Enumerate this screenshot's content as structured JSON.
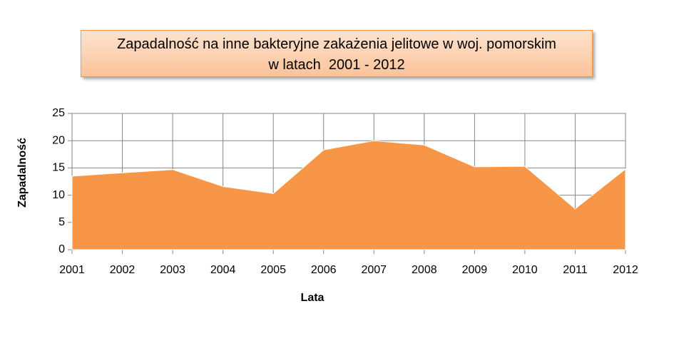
{
  "chart_data": {
    "type": "area",
    "title": [
      "Zapadalność na inne bakteryjne zakażenia jelitowe w woj. pomorskim",
      "w latach  2001 - 2012"
    ],
    "x_label": "Lata",
    "y_label": "Zapadalność",
    "x": [
      2001,
      2002,
      2003,
      2004,
      2005,
      2006,
      2007,
      2008,
      2009,
      2010,
      2011,
      2012
    ],
    "values": [
      13.5,
      14.1,
      14.7,
      11.6,
      10.3,
      18.3,
      20.0,
      19.2,
      15.2,
      15.3,
      7.5,
      14.8
    ],
    "color": "#f79646",
    "xlim": [
      2001,
      2012
    ],
    "xticks": [
      2001,
      2002,
      2003,
      2004,
      2005,
      2006,
      2007,
      2008,
      2009,
      2010,
      2011,
      2012
    ],
    "ylim": [
      0,
      25
    ],
    "yticks": [
      0,
      5,
      10,
      15,
      20,
      25
    ],
    "grid": true
  }
}
